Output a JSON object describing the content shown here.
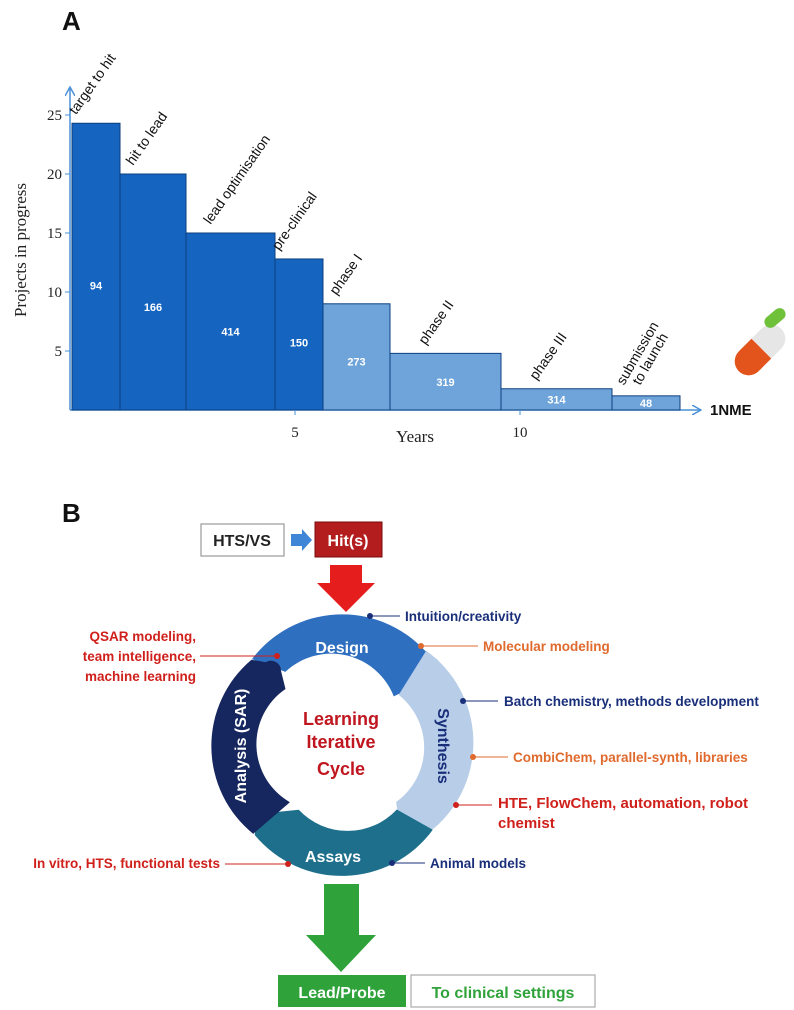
{
  "panel_a": {
    "label": "A",
    "chart_data": {
      "type": "bar",
      "ylabel": "Projects in progress",
      "xlabel": "Years",
      "y_ticks": [
        "5",
        "10",
        "15",
        "20",
        "25"
      ],
      "x_ticks": [
        "5",
        "10"
      ],
      "ylim": [
        0,
        27
      ],
      "endpoint_label": "1NME",
      "stages": [
        {
          "name": "target to hit",
          "count": "94",
          "height": 24.3,
          "phase": "preclinical"
        },
        {
          "name": "hit to lead",
          "count": "166",
          "height": 20,
          "phase": "preclinical"
        },
        {
          "name": "lead optimisation",
          "count": "414",
          "height": 15,
          "phase": "preclinical"
        },
        {
          "name": "pre-clinical",
          "count": "150",
          "height": 12.8,
          "phase": "preclinical"
        },
        {
          "name": "phase I",
          "count": "273",
          "height": 9,
          "phase": "clinical"
        },
        {
          "name": "phase II",
          "count": "319",
          "height": 4.8,
          "phase": "clinical"
        },
        {
          "name": "phase III",
          "count": "314",
          "height": 1.8,
          "phase": "clinical"
        },
        {
          "name": "submission to launch",
          "count": "48",
          "height": 1.2,
          "phase": "clinical"
        }
      ],
      "colors": {
        "preclinical": "#1565c0",
        "clinical": "#6ea4d9",
        "axis": "#4a90d9"
      }
    }
  },
  "panel_b": {
    "label": "B",
    "hts_vs": "HTS/VS",
    "hits": "Hit(s)",
    "lead_probe": "Lead/Probe",
    "to_clinical": "To clinical settings",
    "center_lines": [
      "Learning",
      "Iterative",
      "Cycle"
    ],
    "segments": {
      "design": "Design",
      "synthesis": "Synthesis",
      "assays": "Assays",
      "analysis": "Analysis (SAR)"
    },
    "annotations": {
      "intuition": "Intuition/creativity",
      "molecular_modeling": "Molecular modeling",
      "batch_chemistry": "Batch chemistry, methods development",
      "combichem": "CombiChem, parallel-synth, libraries",
      "hte_line1": "HTE, FlowChem, automation, robot",
      "hte_line2": "chemist",
      "animal_models": "Animal models",
      "in_vitro": "In vitro, HTS, functional tests",
      "qsar_line1": "QSAR modeling,",
      "qsar_line2": "team intelligence,",
      "qsar_line3": "machine learning"
    },
    "colors": {
      "design": "#2f6fbf",
      "synthesis": "#b7cde8",
      "assays": "#1d6f8c",
      "analysis": "#16265e",
      "red_text": "#d0201b",
      "navy_text": "#1a2f7a",
      "green": "#2fa33a"
    }
  }
}
